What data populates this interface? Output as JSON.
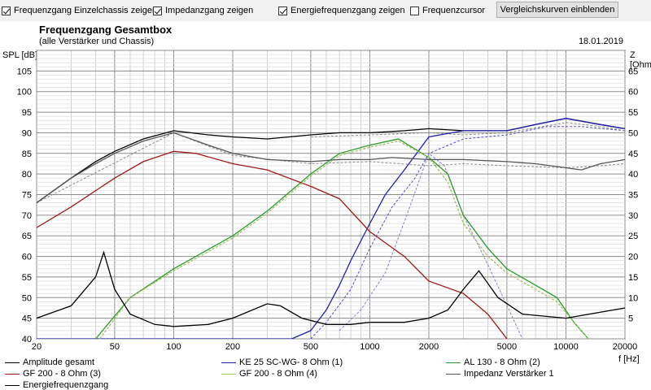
{
  "toolbar": {
    "cb1": {
      "label": "Frequenzgang Einzelchassis zeigen",
      "checked": true
    },
    "cb2": {
      "label": "Impedanzgang zeigen",
      "checked": true
    },
    "cb3": {
      "label": "Energiefrequenzgang zeigen",
      "checked": true
    },
    "cb4": {
      "label": "Frequenzcursor",
      "checked": false
    },
    "button_label": "Vergleichskurven einblenden"
  },
  "chart_data": {
    "type": "line",
    "title": "Frequenzgang Gesamtbox",
    "subtitle": "(alle Verstärker und Chassis)",
    "date": "18.01.2019",
    "ylabel_left": "SPL [dB]",
    "ylabel_right": "Z [Ohm]",
    "xlabel": "f [Hz]",
    "xscale": "log",
    "xlim": [
      20,
      20000
    ],
    "ylim_left": [
      40,
      110
    ],
    "ylim_right": [
      0,
      70
    ],
    "x_ticks": [
      "20",
      "50",
      "100",
      "200",
      "500",
      "1000",
      "2000",
      "5000",
      "10000",
      "20000"
    ],
    "y_ticks_left": [
      "105",
      "100",
      "95",
      "90",
      "85",
      "80",
      "75",
      "70",
      "65",
      "60",
      "55",
      "50",
      "45",
      "40"
    ],
    "y_ticks_right": [
      "65",
      "60",
      "55",
      "50",
      "45",
      "40",
      "35",
      "30",
      "25",
      "20",
      "15",
      "10",
      "5"
    ],
    "grid": true,
    "legend_position": "bottom",
    "series": [
      {
        "name": "Amplitude gesamt",
        "color": "#000000",
        "dashed": false,
        "x": [
          20,
          30,
          40,
          50,
          70,
          100,
          150,
          200,
          300,
          500,
          700,
          1000,
          1500,
          2000,
          3000,
          5000,
          7000,
          10000,
          15000,
          20000
        ],
        "y": [
          73,
          79,
          83,
          85.5,
          88.5,
          90.5,
          89.5,
          89,
          88.5,
          89.5,
          90,
          90,
          90.5,
          91,
          90.5,
          90.5,
          92,
          93.5,
          92,
          91
        ]
      },
      {
        "name": "KE 25 SC-WG- 8 Ohm   (1)",
        "color": "#2020b0",
        "dashed": false,
        "x": [
          20,
          400,
          500,
          600,
          700,
          800,
          1000,
          1200,
          1500,
          2000,
          3000,
          5000,
          7000,
          10000,
          15000,
          20000
        ],
        "y": [
          40,
          40,
          42,
          47,
          53,
          59,
          68,
          75,
          81,
          89,
          90.5,
          90.5,
          92,
          93.5,
          92,
          91
        ]
      },
      {
        "name": "AL 130 - 8 Ohm (2)",
        "color": "#2e9a2e",
        "dashed": false,
        "x": [
          40,
          60,
          100,
          200,
          300,
          500,
          700,
          1000,
          1400,
          2000,
          2500,
          3000,
          4000,
          5000,
          7000,
          9000,
          11000,
          13000
        ],
        "y": [
          40,
          50,
          57,
          65,
          71,
          80,
          85,
          87,
          88.5,
          84,
          80,
          70,
          62,
          57,
          53,
          50,
          44,
          40
        ]
      },
      {
        "name": "GF 200 - 8 Ohm (3)",
        "color": "#a01818",
        "dashed": false,
        "x": [
          20,
          30,
          50,
          70,
          100,
          130,
          200,
          300,
          500,
          700,
          1000,
          1500,
          2000,
          3000,
          4000,
          5000
        ],
        "y": [
          67,
          72,
          79,
          83,
          85.5,
          85,
          82.5,
          81,
          77,
          74,
          66,
          60,
          54,
          51,
          46,
          40
        ]
      },
      {
        "name": "GF 200 - 8 Ohm (4)",
        "color": "#a0c060",
        "dashed": true,
        "x": [
          42,
          60,
          100,
          200,
          300,
          500,
          700,
          1000,
          1400,
          2000,
          2500,
          3000,
          4000,
          5000,
          7000,
          9000,
          11000,
          13000
        ],
        "y": [
          40,
          50,
          56.5,
          64.5,
          70.5,
          79.5,
          84.5,
          86.5,
          88,
          84,
          78,
          68,
          60,
          56,
          52,
          49,
          44,
          40
        ]
      },
      {
        "name": "Impedanz Verstärker 1",
        "color": "#555555",
        "dashed": false,
        "x": [
          20,
          30,
          40,
          50,
          70,
          100,
          150,
          200,
          300,
          500,
          700,
          1000,
          1300,
          2000,
          3000,
          5000,
          7000,
          10000,
          12000,
          15000,
          20000
        ],
        "y": [
          73,
          79,
          82.5,
          85,
          88,
          90,
          87,
          85,
          83.5,
          83,
          83.5,
          83.5,
          84,
          83.5,
          83.5,
          83,
          82.5,
          81.5,
          81,
          82.5,
          83.5
        ]
      },
      {
        "name": "Energiefrequenzgang",
        "color": "#000000",
        "dashed": false,
        "x": [
          20,
          30,
          40,
          44,
          50,
          60,
          80,
          100,
          150,
          200,
          300,
          350,
          450,
          600,
          800,
          1000,
          1500,
          2000,
          2500,
          3000,
          3600,
          4500,
          6000,
          10000,
          20000
        ],
        "y": [
          5,
          8,
          15,
          21,
          12,
          6,
          3.5,
          3,
          3.5,
          5,
          8.5,
          8,
          5,
          3.5,
          3.5,
          4,
          4,
          5,
          7,
          12,
          16.5,
          10,
          6,
          5,
          7.5
        ]
      }
    ],
    "extra_dashed": [
      {
        "color": "#5050c8",
        "x": [
          500,
          600,
          800,
          1000,
          1300,
          1700,
          2000,
          3000,
          5000,
          8000,
          12000,
          20000
        ],
        "y": [
          40,
          44,
          52,
          62,
          72,
          79,
          85,
          88.5,
          89.5,
          91.5,
          91.5,
          90.5
        ]
      },
      {
        "color": "#8a8a8a",
        "x": [
          20,
          100,
          200,
          500,
          1000,
          2000,
          3000,
          5000,
          10000,
          15000,
          20000
        ],
        "y": [
          73,
          90,
          84.5,
          82.5,
          83,
          82,
          82.5,
          82,
          81.5,
          82,
          82.5
        ]
      },
      {
        "color": "#8a8a8a",
        "x": [
          500,
          1000,
          2000,
          3000,
          5000,
          10000,
          15000,
          20000
        ],
        "y": [
          89,
          89.5,
          90,
          89.5,
          90,
          92.5,
          91.5,
          90.5
        ]
      },
      {
        "color": "#8080c8",
        "x": [
          700,
          900,
          1200,
          1600,
          2000,
          2400,
          3000,
          4000,
          6000
        ],
        "y": [
          42,
          47,
          56,
          72,
          85,
          82,
          70,
          58,
          40
        ]
      }
    ]
  }
}
